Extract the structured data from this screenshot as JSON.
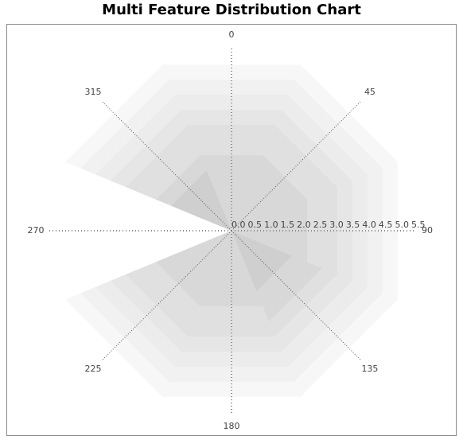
{
  "chart_data": {
    "type": "polar-area",
    "title": "Multi Feature Distribution Chart",
    "angle_ticks": [
      "0",
      "45",
      "90",
      "135",
      "180",
      "225",
      "270",
      "315"
    ],
    "radial_ticks": [
      "0.0",
      "0.5",
      "1.0",
      "1.5",
      "2.0",
      "2.5",
      "3.0",
      "3.5",
      "4.0",
      "4.5",
      "5.0",
      "5.5"
    ],
    "radial_max": 5.5,
    "sector_width_deg": 45,
    "series": [
      {
        "values": [
          5.5,
          5.5,
          5.5,
          5.5,
          5.5,
          5.5,
          0,
          5.5
        ],
        "fill": "#f7f7f7"
      },
      {
        "values": [
          5.0,
          5.0,
          5.0,
          5.0,
          5.0,
          5.0,
          0,
          5.0
        ],
        "fill": "#f1f1f1"
      },
      {
        "values": [
          4.5,
          4.5,
          4.5,
          4.5,
          4.5,
          4.5,
          0,
          4.5
        ],
        "fill": "#ececec"
      },
      {
        "values": [
          4.0,
          4.0,
          4.0,
          4.0,
          4.0,
          4.0,
          0,
          4.0
        ],
        "fill": "#e6e6e6"
      },
      {
        "values": [
          3.5,
          3.5,
          3.5,
          3.5,
          3.5,
          3.5,
          0,
          3.5
        ],
        "fill": "#e0e0e0"
      },
      {
        "values": [
          2.5,
          2.5,
          2.5,
          3.0,
          2.5,
          2.5,
          0,
          2.5
        ],
        "fill": "#d8d8d8"
      },
      {
        "values": [
          0,
          0,
          0,
          2.0,
          0,
          0,
          0,
          2.0
        ],
        "fill": "#cfcfcf"
      }
    ],
    "grid": true,
    "legend": "none"
  }
}
